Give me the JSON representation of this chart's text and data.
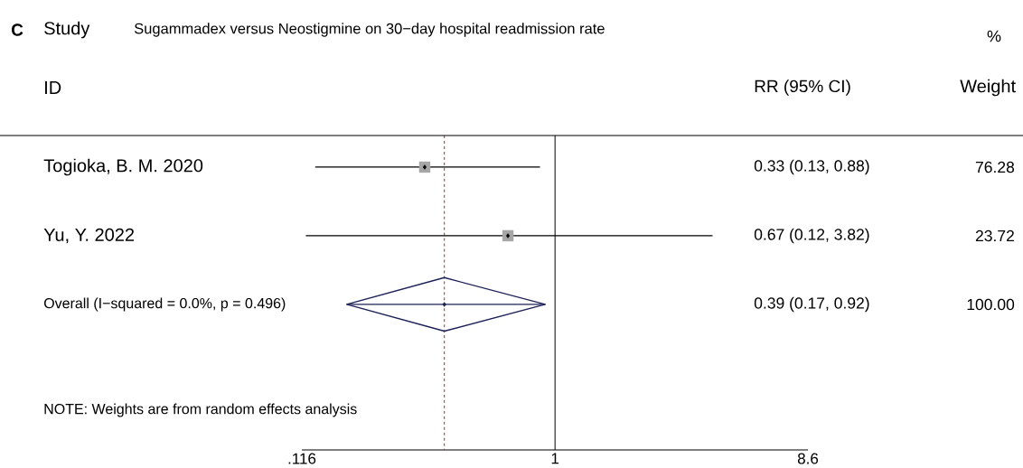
{
  "chart_data": {
    "type": "scatter",
    "orientation": "horizontal",
    "log": "x",
    "title": "Sugammadex versus Neostigmine on 30−day hospital readmission rate",
    "categories": [
      "Togioka, B. M. 2020",
      "Yu, Y. 2022",
      "Overall  (I−squared = 0.0%, p = 0.496)"
    ],
    "xlim": [
      0.116,
      8.6
    ],
    "xticks": [
      {
        "value": 0.116,
        "label": ".116"
      },
      1,
      8.6
    ],
    "series": [
      {
        "color": "#a6a6a6",
        "marker": "square",
        "values": [
          0.33,
          0.67,
          null
        ],
        "errors": [
          [
            0.13,
            0.88
          ],
          [
            0.12,
            3.82
          ],
          null
        ]
      },
      {
        "color": "#1c2157",
        "marker": "diamond",
        "values": [
          null,
          null,
          0.39
        ],
        "errors": [
          null,
          null,
          [
            0.17,
            0.92
          ]
        ]
      }
    ],
    "ref_lines": [
      {
        "axis": "x",
        "value": 1,
        "color": "#000000",
        "line_style": "solid"
      },
      {
        "axis": "x",
        "value": 0.39,
        "color": "#b22222",
        "line_style": "dashed"
      }
    ],
    "annotations": [
      "C",
      "Study",
      "%",
      "ID",
      "RR (95% CI)",
      "Weight",
      "0.33 (0.13, 0.88)",
      "0.67 (0.12, 3.82)",
      "0.39 (0.17, 0.92)",
      "76.28",
      "23.72",
      "100.00",
      "NOTE: Weights are from random effects analysis"
    ]
  }
}
